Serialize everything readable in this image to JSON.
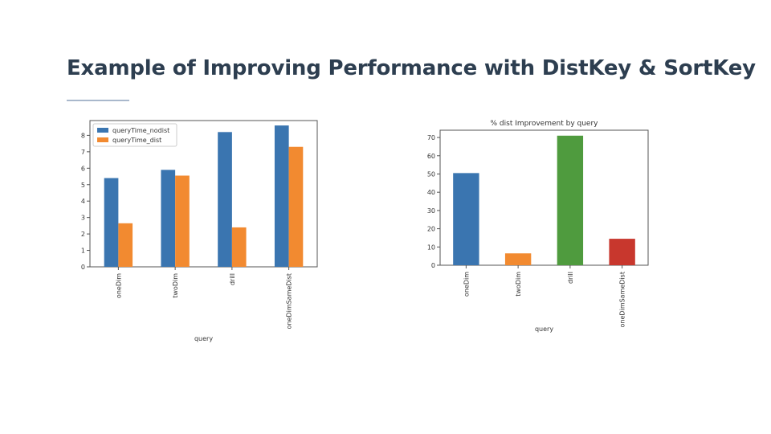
{
  "slide": {
    "title": "Example of Improving Performance with DistKey & SortKey"
  },
  "chart_data": [
    {
      "type": "bar",
      "title": "",
      "xlabel": "query",
      "ylabel": "",
      "categories": [
        "oneDim",
        "twoDim",
        "drill",
        "oneDimSameDist"
      ],
      "series": [
        {
          "name": "queryTime_nodist",
          "color": "#3a75b0",
          "values": [
            5.4,
            5.9,
            8.2,
            8.6
          ]
        },
        {
          "name": "queryTime_dist",
          "color": "#f28a30",
          "values": [
            2.65,
            5.55,
            2.4,
            7.3
          ]
        }
      ],
      "ylim": [
        0,
        8.9
      ],
      "yticks": [
        0,
        1,
        2,
        3,
        4,
        5,
        6,
        7,
        8
      ],
      "legend": "top-left",
      "grid": false
    },
    {
      "type": "bar",
      "title": "% dist Improvement by query",
      "xlabel": "query",
      "ylabel": "",
      "categories": [
        "oneDim",
        "twoDim",
        "drill",
        "oneDimSameDist"
      ],
      "values": [
        50.5,
        6.5,
        71,
        14.5
      ],
      "colors": [
        "#3a75b0",
        "#f28a30",
        "#4f9b3e",
        "#c8372d"
      ],
      "ylim": [
        0,
        74
      ],
      "yticks": [
        0,
        10,
        20,
        30,
        40,
        50,
        60,
        70
      ],
      "legend": "none",
      "grid": false
    }
  ]
}
